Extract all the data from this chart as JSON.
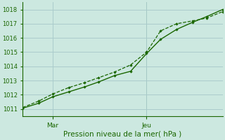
{
  "background_color": "#cce8e0",
  "grid_color": "#aacccc",
  "line_color": "#1a6600",
  "title": "Pression niveau de la mer( hPa )",
  "ylim": [
    1010.5,
    1018.5
  ],
  "yticks": [
    1011,
    1012,
    1013,
    1014,
    1015,
    1016,
    1017,
    1018
  ],
  "xlim": [
    0,
    1
  ],
  "xtick_labels": [
    "Mar",
    "Jeu"
  ],
  "xtick_positions": [
    0.15,
    0.62
  ],
  "vline_x": 0.62,
  "line1_x": [
    0.0,
    0.08,
    0.15,
    0.23,
    0.31,
    0.38,
    0.46,
    0.54,
    0.62,
    0.69,
    0.77,
    0.85,
    0.92,
    1.0
  ],
  "line1_y": [
    1011.1,
    1011.55,
    1012.05,
    1012.5,
    1012.85,
    1013.2,
    1013.6,
    1014.1,
    1015.0,
    1016.5,
    1017.0,
    1017.2,
    1017.4,
    1017.85
  ],
  "line2_x": [
    0.0,
    0.08,
    0.15,
    0.23,
    0.31,
    0.38,
    0.46,
    0.54,
    0.62,
    0.69,
    0.77,
    0.85,
    0.92,
    1.0
  ],
  "line2_y": [
    1011.05,
    1011.4,
    1011.85,
    1012.2,
    1012.55,
    1012.9,
    1013.35,
    1013.65,
    1014.9,
    1015.9,
    1016.6,
    1017.1,
    1017.5,
    1018.0
  ],
  "line1_style": "--",
  "line2_style": "-",
  "marker": "D",
  "markersize": 2.2,
  "linewidth1": 0.9,
  "linewidth2": 1.0,
  "title_fontsize": 7.5,
  "ytick_fontsize": 6.0,
  "xtick_fontsize": 6.5
}
